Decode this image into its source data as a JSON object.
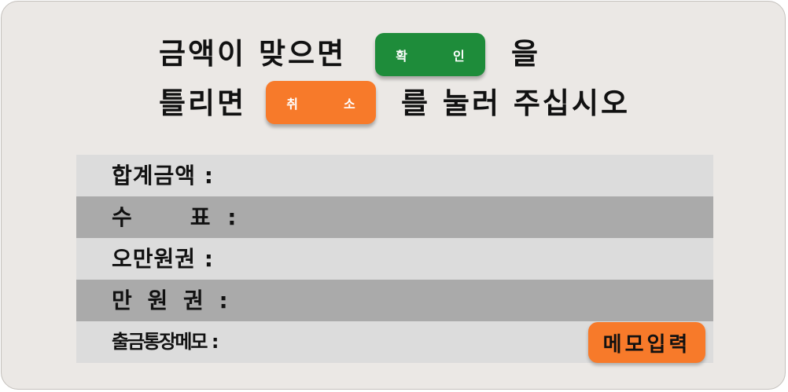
{
  "prompt": {
    "line1_prefix": "금액이 맞으면",
    "line1_suffix": "을",
    "line2_prefix": "틀리면",
    "line2_suffix": "를 눌러 주십시오"
  },
  "buttons": {
    "confirm": [
      "확",
      "인"
    ],
    "cancel": [
      "취",
      "소"
    ]
  },
  "rows": [
    {
      "label": "합계금액 :",
      "value": ""
    },
    {
      "label": "수　　표 :",
      "value": ""
    },
    {
      "label": "오만원권 :",
      "value": ""
    },
    {
      "label": "만 원 권 :",
      "value": ""
    },
    {
      "label": "출금통장메모 :",
      "value": ""
    }
  ],
  "memo_button": "메모입력",
  "colors": {
    "background": "#ebe8e5",
    "confirm": "#1e8c3a",
    "cancel": "#f77a2a",
    "row_light": "#dcdcdc",
    "row_dark": "#aaaaaa"
  }
}
